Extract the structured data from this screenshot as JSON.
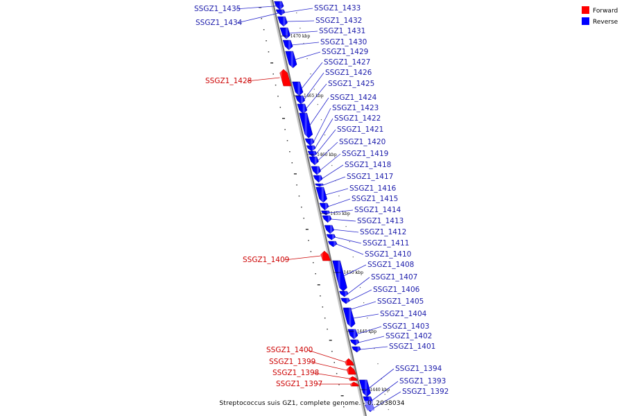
{
  "caption": "Streptococcus suis GZ1, complete genome. - 0..2038034",
  "legend": [
    {
      "label": "Forward",
      "color": "#ff0000"
    },
    {
      "label": "Reverse",
      "color": "#0000ff"
    }
  ],
  "colors": {
    "forward": "#ff0000",
    "reverse": "#0000ff",
    "backbone": "#888888",
    "leader_forward": "#cc0000",
    "leader_reverse": "#2222cc",
    "text_forward": "#cc0000",
    "text_reverse": "#1a1aaa"
  },
  "ticks": [
    "1470 kbp",
    "1465 kbp",
    "1460 kbp",
    "1455 kbp",
    "1450 kbp",
    "1445 kbp",
    "1440 kbp"
  ],
  "genes": [
    {
      "label": "SSGZ1_1435",
      "strand": "reverse"
    },
    {
      "label": "SSGZ1_1434",
      "strand": "reverse"
    },
    {
      "label": "SSGZ1_1433",
      "strand": "reverse"
    },
    {
      "label": "SSGZ1_1432",
      "strand": "reverse"
    },
    {
      "label": "SSGZ1_1431",
      "strand": "reverse"
    },
    {
      "label": "SSGZ1_1430",
      "strand": "reverse"
    },
    {
      "label": "SSGZ1_1429",
      "strand": "reverse"
    },
    {
      "label": "SSGZ1_1428",
      "strand": "forward"
    },
    {
      "label": "SSGZ1_1427",
      "strand": "reverse"
    },
    {
      "label": "SSGZ1_1426",
      "strand": "reverse"
    },
    {
      "label": "SSGZ1_1425",
      "strand": "reverse"
    },
    {
      "label": "SSGZ1_1424",
      "strand": "reverse"
    },
    {
      "label": "SSGZ1_1423",
      "strand": "reverse"
    },
    {
      "label": "SSGZ1_1422",
      "strand": "reverse"
    },
    {
      "label": "SSGZ1_1421",
      "strand": "reverse"
    },
    {
      "label": "SSGZ1_1420",
      "strand": "reverse"
    },
    {
      "label": "SSGZ1_1419",
      "strand": "reverse"
    },
    {
      "label": "SSGZ1_1418",
      "strand": "reverse"
    },
    {
      "label": "SSGZ1_1417",
      "strand": "reverse"
    },
    {
      "label": "SSGZ1_1416",
      "strand": "reverse"
    },
    {
      "label": "SSGZ1_1415",
      "strand": "reverse"
    },
    {
      "label": "SSGZ1_1414",
      "strand": "reverse"
    },
    {
      "label": "SSGZ1_1413",
      "strand": "reverse"
    },
    {
      "label": "SSGZ1_1412",
      "strand": "reverse"
    },
    {
      "label": "SSGZ1_1411",
      "strand": "reverse"
    },
    {
      "label": "SSGZ1_1410",
      "strand": "reverse"
    },
    {
      "label": "SSGZ1_1409",
      "strand": "forward"
    },
    {
      "label": "SSGZ1_1408",
      "strand": "reverse"
    },
    {
      "label": "SSGZ1_1407",
      "strand": "reverse"
    },
    {
      "label": "SSGZ1_1406",
      "strand": "reverse"
    },
    {
      "label": "SSGZ1_1405",
      "strand": "reverse"
    },
    {
      "label": "SSGZ1_1404",
      "strand": "reverse"
    },
    {
      "label": "SSGZ1_1403",
      "strand": "reverse"
    },
    {
      "label": "SSGZ1_1402",
      "strand": "reverse"
    },
    {
      "label": "SSGZ1_1401",
      "strand": "reverse"
    },
    {
      "label": "SSGZ1_1400",
      "strand": "forward"
    },
    {
      "label": "SSGZ1_1399",
      "strand": "forward"
    },
    {
      "label": "SSGZ1_1398",
      "strand": "forward"
    },
    {
      "label": "SSGZ1_1397",
      "strand": "forward"
    },
    {
      "label": "SSGZ1_1394",
      "strand": "reverse"
    },
    {
      "label": "SSGZ1_1393",
      "strand": "reverse"
    },
    {
      "label": "SSGZ1_1392",
      "strand": "reverse"
    }
  ]
}
